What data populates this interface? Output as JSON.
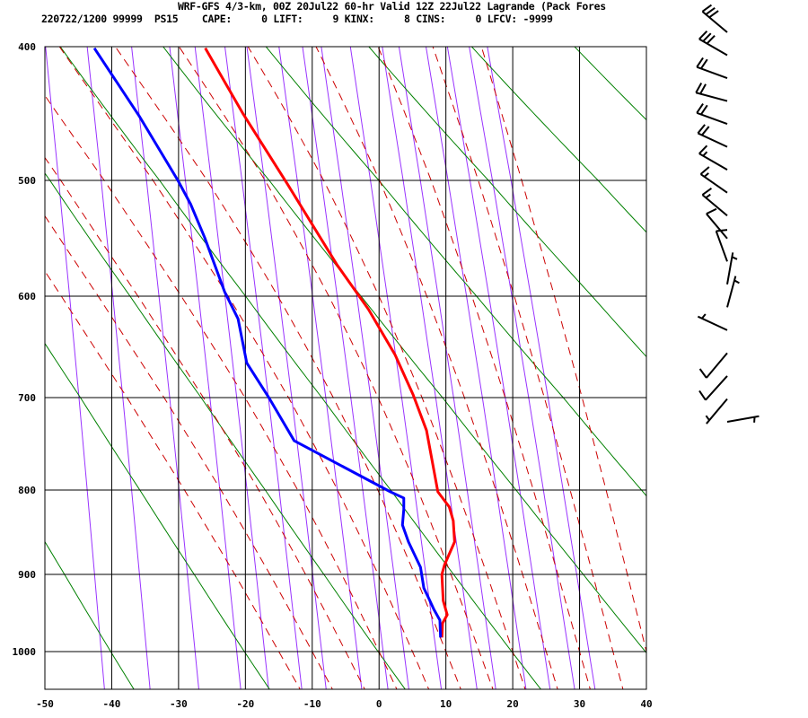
{
  "header": {
    "title": "WRF-GFS 4/3-km, 00Z 20Jul22 60-hr Valid 12Z 22Jul22 Lagrande (Pack Fores",
    "info": "220722/1200 99999  PS15    CAPE:     0 LIFT:     9 KINX:     8 CINS:     0 LFCV: -9999"
  },
  "chart_data": {
    "type": "line",
    "diagram": "skew-T / log-p sounding",
    "xlim": [
      -50,
      40
    ],
    "ylim": [
      1050,
      400
    ],
    "y_scale": "log",
    "x_ticks": [
      "-50",
      "-40",
      "-30",
      "-20",
      "-10",
      "0",
      "10",
      "20",
      "30",
      "40"
    ],
    "y_ticks": [
      "400",
      "500",
      "600",
      "700",
      "800",
      "900",
      "1000"
    ],
    "grid": true,
    "colors": {
      "temperature": "#ff0000",
      "dewpoint": "#0000ff",
      "dry_adiabat": "#008000",
      "moist_adiabat": "#cc0000",
      "mixing_ratio": "#9933ff"
    },
    "series": [
      {
        "color": "#ff0000",
        "points": [
          [
            401,
            -26.0
          ],
          [
            447,
            -20.4
          ],
          [
            503,
            -13.7
          ],
          [
            571,
            -6.3
          ],
          [
            612,
            -1.6
          ],
          [
            656,
            2.4
          ],
          [
            697,
            5.1
          ],
          [
            734,
            7.1
          ],
          [
            802,
            8.8
          ],
          [
            819,
            10.5
          ],
          [
            835,
            11.1
          ],
          [
            860,
            11.3
          ],
          [
            888,
            9.8
          ],
          [
            900,
            9.4
          ],
          [
            933,
            9.6
          ],
          [
            951,
            10.2
          ],
          [
            962,
            9.5
          ],
          [
            981,
            9.4
          ]
        ]
      },
      {
        "color": "#0000ff",
        "points": [
          [
            401,
            -42.6
          ],
          [
            449,
            -35.9
          ],
          [
            500,
            -30.1
          ],
          [
            519,
            -28.2
          ],
          [
            547,
            -26.1
          ],
          [
            596,
            -23.1
          ],
          [
            621,
            -21.1
          ],
          [
            664,
            -19.8
          ],
          [
            701,
            -16.4
          ],
          [
            745,
            -12.7
          ],
          [
            802,
            1.7
          ],
          [
            809,
            3.7
          ],
          [
            822,
            3.7
          ],
          [
            840,
            3.5
          ],
          [
            860,
            4.4
          ],
          [
            891,
            6.2
          ],
          [
            917,
            6.7
          ],
          [
            931,
            7.5
          ],
          [
            944,
            8.2
          ],
          [
            958,
            9.1
          ],
          [
            981,
            9.2
          ]
        ]
      }
    ],
    "dry_adiabats_K": [
      233,
      253,
      273,
      293,
      313,
      333,
      353,
      373,
      393
    ],
    "moist_adiabats_C_at_1000": [
      -15,
      -10,
      -5,
      0,
      5,
      10,
      15,
      20,
      25,
      30,
      35,
      40
    ],
    "mixing_ratio_gkg": [
      0.1,
      0.2,
      0.4,
      0.7,
      1,
      1.5,
      2,
      3,
      4,
      5,
      7,
      10,
      12,
      16,
      20,
      25,
      30
    ],
    "wind_barbs": [
      {
        "p": 384,
        "dir": 310,
        "spd": 30
      },
      {
        "p": 420,
        "dir": 300,
        "spd": 30
      },
      {
        "p": 456,
        "dir": 290,
        "spd": 20
      },
      {
        "p": 491,
        "dir": 285,
        "spd": 20
      },
      {
        "p": 517,
        "dir": 290,
        "spd": 20
      },
      {
        "p": 541,
        "dir": 295,
        "spd": 20
      },
      {
        "p": 566,
        "dir": 300,
        "spd": 15
      },
      {
        "p": 583,
        "dir": 305,
        "spd": 15
      },
      {
        "p": 600,
        "dir": 310,
        "spd": 15
      },
      {
        "p": 617,
        "dir": 320,
        "spd": 10
      },
      {
        "p": 640,
        "dir": 340,
        "spd": 10
      },
      {
        "p": 655,
        "dir": 10,
        "spd": 5
      },
      {
        "p": 670,
        "dir": 15,
        "spd": 5
      },
      {
        "p": 690,
        "dir": 295,
        "spd": 5
      },
      {
        "p": 720,
        "dir": 220,
        "spd": 10
      },
      {
        "p": 745,
        "dir": 222,
        "spd": 10
      },
      {
        "p": 770,
        "dir": 220,
        "spd": 5
      },
      {
        "p": 790,
        "dir": 80,
        "spd": 5
      }
    ]
  }
}
